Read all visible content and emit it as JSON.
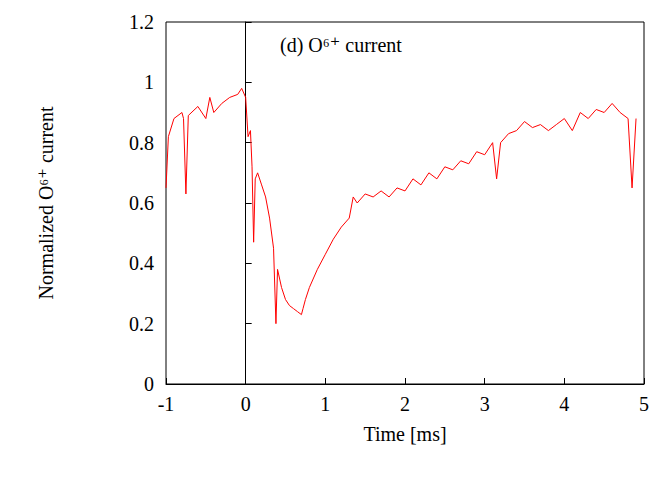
{
  "chart_data": {
    "type": "line",
    "title": "(d) O⁶⁺ current",
    "x_label": "Time [ms]",
    "y_label": "Normalized O⁶⁺ current",
    "x": [
      -1,
      -0.97,
      -0.9,
      -0.8,
      -0.78,
      -0.75,
      -0.72,
      -0.6,
      -0.5,
      -0.45,
      -0.4,
      -0.3,
      -0.2,
      -0.1,
      -0.05,
      0,
      0.03,
      0.06,
      0.08,
      0.1,
      0.12,
      0.15,
      0.2,
      0.25,
      0.3,
      0.35,
      0.38,
      0.4,
      0.45,
      0.5,
      0.55,
      0.6,
      0.65,
      0.7,
      0.72,
      0.75,
      0.8,
      0.9,
      1.0,
      1.1,
      1.2,
      1.3,
      1.35,
      1.4,
      1.5,
      1.6,
      1.7,
      1.8,
      1.9,
      2.0,
      2.1,
      2.2,
      2.3,
      2.4,
      2.5,
      2.6,
      2.7,
      2.8,
      2.9,
      3.0,
      3.1,
      3.15,
      3.2,
      3.3,
      3.4,
      3.5,
      3.6,
      3.7,
      3.8,
      3.9,
      4.0,
      4.1,
      4.2,
      4.3,
      4.4,
      4.5,
      4.6,
      4.7,
      4.8,
      4.85,
      4.9
    ],
    "series": [
      {
        "color": "#ff0000",
        "line_style": "solid",
        "values": [
          0.65,
          0.82,
          0.88,
          0.9,
          0.88,
          0.63,
          0.89,
          0.92,
          0.88,
          0.95,
          0.9,
          0.93,
          0.95,
          0.96,
          0.98,
          0.95,
          0.82,
          0.84,
          0.72,
          0.47,
          0.68,
          0.7,
          0.66,
          0.62,
          0.55,
          0.45,
          0.2,
          0.38,
          0.32,
          0.28,
          0.26,
          0.25,
          0.24,
          0.23,
          0.25,
          0.28,
          0.32,
          0.38,
          0.43,
          0.48,
          0.52,
          0.55,
          0.62,
          0.6,
          0.63,
          0.62,
          0.64,
          0.62,
          0.65,
          0.64,
          0.68,
          0.66,
          0.7,
          0.68,
          0.72,
          0.71,
          0.74,
          0.73,
          0.77,
          0.76,
          0.8,
          0.68,
          0.8,
          0.83,
          0.84,
          0.87,
          0.85,
          0.86,
          0.84,
          0.86,
          0.88,
          0.84,
          0.9,
          0.88,
          0.91,
          0.9,
          0.93,
          0.9,
          0.88,
          0.65,
          0.88
        ]
      }
    ],
    "xlim": [
      -1,
      5
    ],
    "xticks": [
      -1,
      0,
      1,
      2,
      3,
      4,
      5
    ],
    "ylim": [
      0,
      1.2
    ],
    "yticks": [
      0,
      0.2,
      0.4,
      0.6,
      0.8,
      1,
      1.2
    ],
    "grid": false
  }
}
